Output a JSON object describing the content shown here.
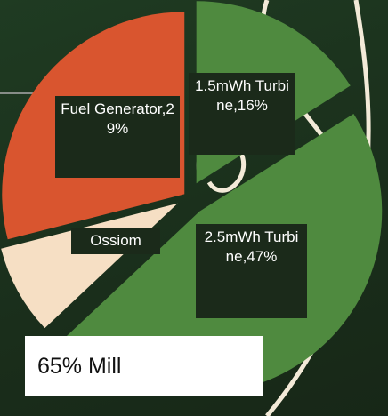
{
  "chart_data": {
    "type": "pie",
    "values": [
      16,
      47,
      8,
      29
    ],
    "value_labels": [
      "1.5mWh Turbine,16%",
      "2.5mWh Turbine,47%",
      "Ossiom",
      "Fuel Generator,29%"
    ],
    "colors": [
      "#4f8a3f",
      "#4f8a3f",
      "#f6dfc4",
      "#d9552f"
    ],
    "annotation": "65% Mill"
  }
}
